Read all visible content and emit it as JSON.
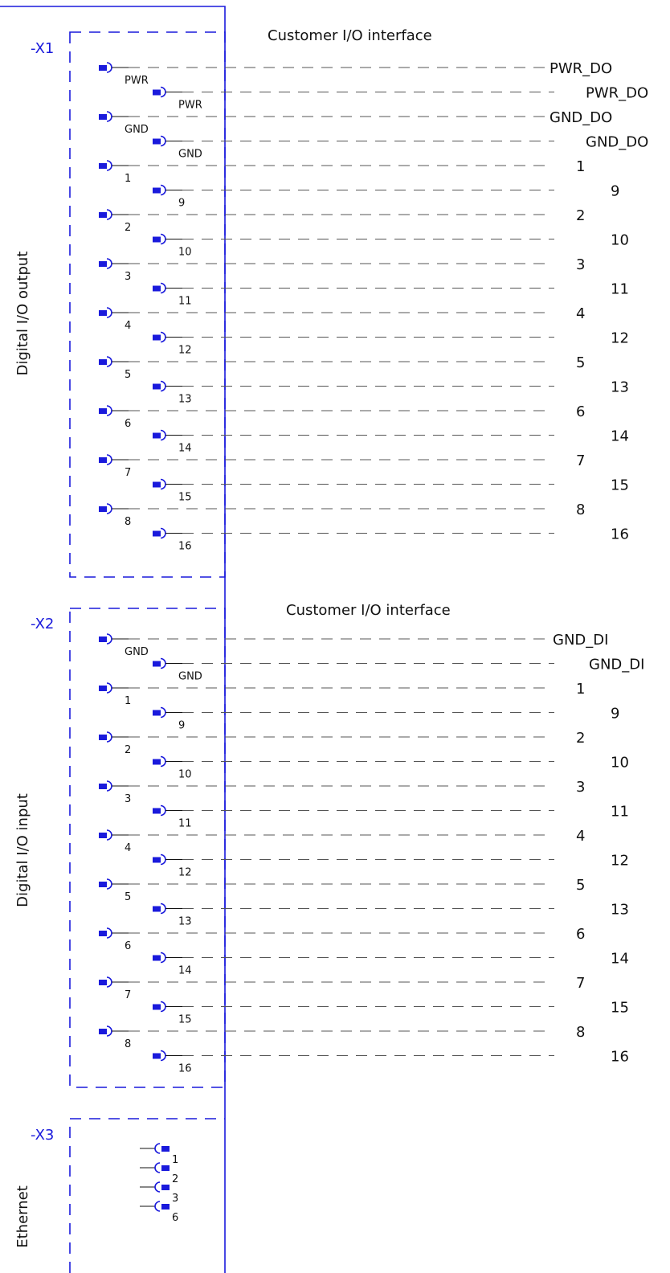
{
  "colors": {
    "accent_blue": "#1a1adc",
    "line_black": "#111111",
    "dash_gray": "#555555"
  },
  "sections": [
    {
      "id": "x1",
      "tag": "-X1",
      "side_label": "Digital I/O output",
      "header": "Customer I/O interface",
      "rows": [
        {
          "pin": "PWR",
          "terminal": "PWR_DO"
        },
        {
          "pin": "PWR",
          "terminal": "PWR_DO"
        },
        {
          "pin": "GND",
          "terminal": "GND_DO"
        },
        {
          "pin": "GND",
          "terminal": "GND_DO"
        },
        {
          "pin": "1",
          "terminal": "1"
        },
        {
          "pin": "9",
          "terminal": "9"
        },
        {
          "pin": "2",
          "terminal": "2"
        },
        {
          "pin": "10",
          "terminal": "10"
        },
        {
          "pin": "3",
          "terminal": "3"
        },
        {
          "pin": "11",
          "terminal": "11"
        },
        {
          "pin": "4",
          "terminal": "4"
        },
        {
          "pin": "12",
          "terminal": "12"
        },
        {
          "pin": "5",
          "terminal": "5"
        },
        {
          "pin": "13",
          "terminal": "13"
        },
        {
          "pin": "6",
          "terminal": "6"
        },
        {
          "pin": "14",
          "terminal": "14"
        },
        {
          "pin": "7",
          "terminal": "7"
        },
        {
          "pin": "15",
          "terminal": "15"
        },
        {
          "pin": "8",
          "terminal": "8"
        },
        {
          "pin": "16",
          "terminal": "16"
        }
      ]
    },
    {
      "id": "x2",
      "tag": "-X2",
      "side_label": "Digital I/O input",
      "header": "Customer I/O interface",
      "rows": [
        {
          "pin": "GND",
          "terminal": "GND_DI"
        },
        {
          "pin": "GND",
          "terminal": "GND_DI"
        },
        {
          "pin": "1",
          "terminal": "1"
        },
        {
          "pin": "9",
          "terminal": "9"
        },
        {
          "pin": "2",
          "terminal": "2"
        },
        {
          "pin": "10",
          "terminal": "10"
        },
        {
          "pin": "3",
          "terminal": "3"
        },
        {
          "pin": "11",
          "terminal": "11"
        },
        {
          "pin": "4",
          "terminal": "4"
        },
        {
          "pin": "12",
          "terminal": "12"
        },
        {
          "pin": "5",
          "terminal": "5"
        },
        {
          "pin": "13",
          "terminal": "13"
        },
        {
          "pin": "6",
          "terminal": "6"
        },
        {
          "pin": "14",
          "terminal": "14"
        },
        {
          "pin": "7",
          "terminal": "7"
        },
        {
          "pin": "15",
          "terminal": "15"
        },
        {
          "pin": "8",
          "terminal": "8"
        },
        {
          "pin": "16",
          "terminal": "16"
        }
      ]
    }
  ],
  "ethernet": {
    "tag": "-X3",
    "side_label": "Ethernet",
    "pins": [
      "1",
      "2",
      "3",
      "6"
    ]
  }
}
